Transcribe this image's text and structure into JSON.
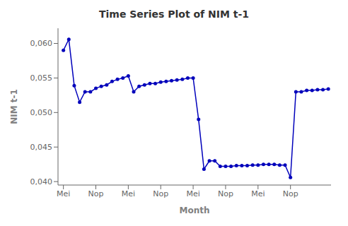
{
  "chart_data": {
    "type": "line",
    "title": "Time Series Plot of NIM t-1",
    "xlabel": "Month",
    "ylabel": "NIM t-1",
    "x": [
      1,
      2,
      3,
      4,
      5,
      6,
      7,
      8,
      9,
      10,
      11,
      12,
      13,
      14,
      15,
      16,
      17,
      18,
      19,
      20,
      21,
      22,
      23,
      24,
      25,
      26,
      27,
      28,
      29,
      30,
      31,
      32,
      33,
      34,
      35,
      36,
      37,
      38,
      39,
      40,
      41,
      42,
      43,
      44,
      45,
      46,
      47,
      48,
      49,
      50
    ],
    "values": [
      0.059,
      0.0606,
      0.0539,
      0.0515,
      0.053,
      0.053,
      0.0535,
      0.0538,
      0.054,
      0.0545,
      0.0548,
      0.055,
      0.0553,
      0.053,
      0.0538,
      0.054,
      0.0542,
      0.0542,
      0.0544,
      0.0545,
      0.0546,
      0.0547,
      0.0548,
      0.055,
      0.055,
      0.049,
      0.0418,
      0.043,
      0.043,
      0.0422,
      0.0422,
      0.0422,
      0.0423,
      0.0423,
      0.0423,
      0.0424,
      0.0424,
      0.0425,
      0.0425,
      0.0425,
      0.0424,
      0.0424,
      0.0406,
      0.053,
      0.053,
      0.0532,
      0.0532,
      0.0533,
      0.0533,
      0.0534
    ],
    "color": "#0000bb",
    "marker": "circle",
    "xlim": [
      0.0,
      50.5
    ],
    "xticks": [
      {
        "value": 1,
        "label": "Mei"
      },
      {
        "value": 7,
        "label": "Nop"
      },
      {
        "value": 13,
        "label": "Mei"
      },
      {
        "value": 19,
        "label": "Nop"
      },
      {
        "value": 25,
        "label": "Mei"
      },
      {
        "value": 31,
        "label": "Nop"
      },
      {
        "value": 37,
        "label": "Mei"
      },
      {
        "value": 43,
        "label": "Nop"
      }
    ],
    "ylim": [
      0.0395,
      0.0622
    ],
    "yticks": [
      {
        "value": 0.04,
        "label": "0,040"
      },
      {
        "value": 0.045,
        "label": "0,045"
      },
      {
        "value": 0.05,
        "label": "0,050"
      },
      {
        "value": 0.055,
        "label": "0,055"
      },
      {
        "value": 0.06,
        "label": "0,060"
      }
    ],
    "grid": false
  }
}
